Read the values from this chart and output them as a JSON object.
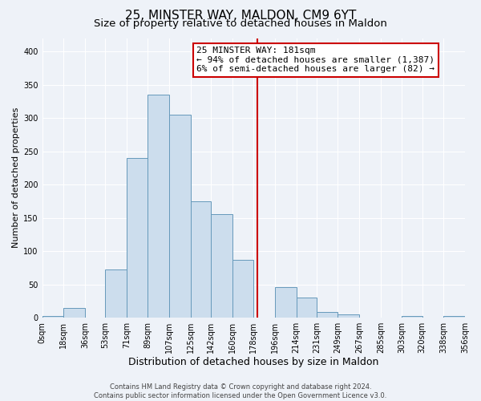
{
  "title": "25, MINSTER WAY, MALDON, CM9 6YT",
  "subtitle": "Size of property relative to detached houses in Maldon",
  "xlabel": "Distribution of detached houses by size in Maldon",
  "ylabel": "Number of detached properties",
  "bin_edges": [
    0,
    18,
    36,
    53,
    71,
    89,
    107,
    125,
    142,
    160,
    178,
    196,
    214,
    231,
    249,
    267,
    285,
    303,
    320,
    338,
    356
  ],
  "bin_labels": [
    "0sqm",
    "18sqm",
    "36sqm",
    "53sqm",
    "71sqm",
    "89sqm",
    "107sqm",
    "125sqm",
    "142sqm",
    "160sqm",
    "178sqm",
    "196sqm",
    "214sqm",
    "231sqm",
    "249sqm",
    "267sqm",
    "285sqm",
    "303sqm",
    "320sqm",
    "338sqm",
    "356sqm"
  ],
  "bar_heights": [
    2,
    15,
    0,
    73,
    240,
    335,
    305,
    175,
    155,
    87,
    0,
    46,
    30,
    8,
    5,
    0,
    0,
    2,
    0,
    2
  ],
  "bar_color": "#ccdded",
  "bar_edge_color": "#6699bb",
  "vline_x": 181,
  "vline_color": "#cc0000",
  "annotation_text": "25 MINSTER WAY: 181sqm\n← 94% of detached houses are smaller (1,387)\n6% of semi-detached houses are larger (82) →",
  "annotation_box_facecolor": "#ffffff",
  "annotation_box_edgecolor": "#cc0000",
  "ylim": [
    0,
    420
  ],
  "yticks": [
    0,
    50,
    100,
    150,
    200,
    250,
    300,
    350,
    400
  ],
  "background_color": "#eef2f8",
  "grid_color": "#ffffff",
  "footer_text": "Contains HM Land Registry data © Crown copyright and database right 2024.\nContains public sector information licensed under the Open Government Licence v3.0.",
  "title_fontsize": 11,
  "subtitle_fontsize": 9.5,
  "xlabel_fontsize": 9,
  "ylabel_fontsize": 8,
  "tick_fontsize": 7,
  "annotation_fontsize": 8,
  "footer_fontsize": 6
}
